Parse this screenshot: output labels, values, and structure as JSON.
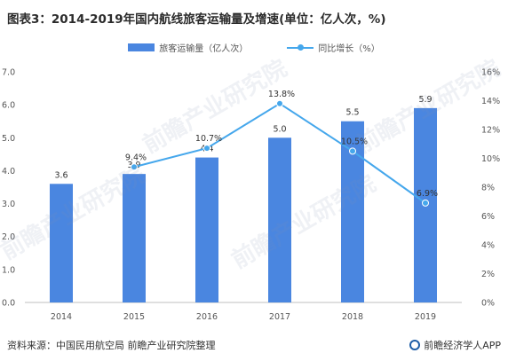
{
  "title": "图表3：2014-2019年国内航线旅客运输量及增速(单位：亿人次，%)",
  "source": "资料来源：中国民用航空局 前瞻产业研究院整理",
  "brand": "前瞻经济学人APP",
  "watermark": "前瞻产业研究院",
  "colors": {
    "bar": "#4a86e0",
    "line": "#45a7ec"
  },
  "chart_data": {
    "type": "bar+line",
    "categories": [
      "2014",
      "2015",
      "2016",
      "2017",
      "2018",
      "2019"
    ],
    "series": [
      {
        "name": "旅客运输量（亿人次）",
        "type": "bar",
        "axis": "left",
        "values": [
          3.6,
          3.9,
          4.4,
          5.0,
          5.5,
          5.9
        ],
        "labels": [
          "3.6",
          "3.9",
          "4.4",
          "5.0",
          "5.5",
          "5.9"
        ]
      },
      {
        "name": "同比增长（%）",
        "type": "line",
        "axis": "right",
        "values": [
          null,
          9.4,
          10.7,
          13.8,
          10.5,
          6.9
        ],
        "labels": [
          "",
          "9.4%",
          "10.7%",
          "13.8%",
          "10.5%",
          "6.9%"
        ]
      }
    ],
    "left_axis": {
      "ylim": [
        0,
        7
      ],
      "ticks": [
        "0.0",
        "1.0",
        "2.0",
        "3.0",
        "4.0",
        "5.0",
        "6.0",
        "7.0"
      ]
    },
    "right_axis": {
      "ylim": [
        0,
        16
      ],
      "ticks": [
        "0%",
        "2%",
        "4%",
        "6%",
        "8%",
        "10%",
        "12%",
        "14%",
        "16%"
      ]
    },
    "legend_position": "top-center",
    "grid": false
  }
}
